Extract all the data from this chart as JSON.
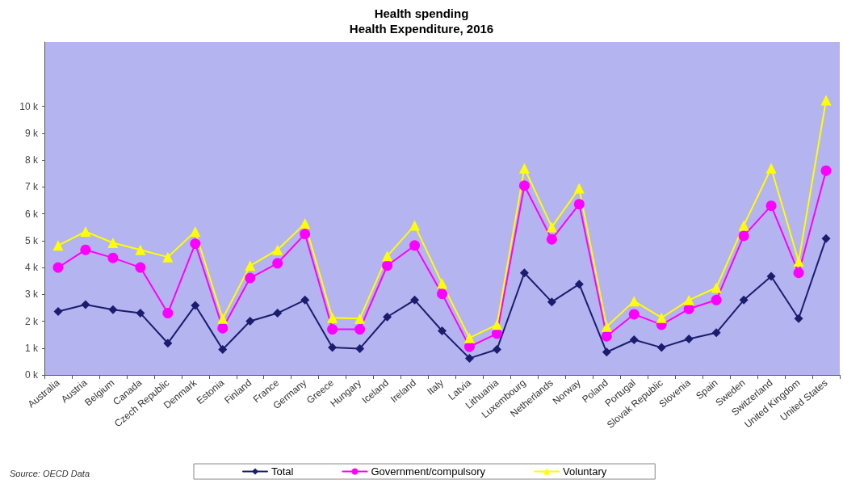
{
  "chart_data": {
    "type": "line",
    "title": "Health spending",
    "subtitle": "Health Expenditure, 2016",
    "categories": [
      "Australia",
      "Austria",
      "Belgium",
      "Canada",
      "Czech Republic",
      "Denmark",
      "Estonia",
      "Finland",
      "France",
      "Germany",
      "Greece",
      "Hungary",
      "Iceland",
      "Ireland",
      "Italy",
      "Latvia",
      "Lithuania",
      "Luxembourg",
      "Netherlands",
      "Norway",
      "Poland",
      "Portugal",
      "Slovak Republic",
      "Slovenia",
      "Spain",
      "Sweden",
      "Switzerland",
      "United Kingdom",
      "United States"
    ],
    "series": [
      {
        "name": "Total",
        "color": "#1c1c6e",
        "marker": "diamond",
        "values": [
          2.36,
          2.62,
          2.43,
          2.3,
          1.18,
          2.59,
          0.95,
          2.0,
          2.3,
          2.79,
          1.02,
          0.98,
          2.16,
          2.79,
          1.64,
          0.62,
          0.95,
          3.8,
          2.72,
          3.38,
          0.85,
          1.31,
          1.02,
          1.34,
          1.57,
          2.79,
          3.67,
          2.1,
          5.08
        ]
      },
      {
        "name": "Government/compulsory",
        "color": "#ff00ff",
        "marker": "circle",
        "values": [
          4.0,
          4.66,
          4.36,
          4.0,
          2.3,
          4.89,
          1.74,
          3.61,
          4.16,
          5.25,
          1.7,
          1.7,
          4.07,
          4.82,
          3.02,
          1.05,
          1.54,
          7.05,
          5.05,
          6.36,
          1.44,
          2.26,
          1.87,
          2.46,
          2.79,
          5.18,
          6.3,
          3.8,
          7.61
        ]
      },
      {
        "name": "Voluntary",
        "color": "#ffff00",
        "marker": "triangle",
        "values": [
          4.82,
          5.34,
          4.92,
          4.66,
          4.39,
          5.34,
          2.1,
          4.07,
          4.66,
          5.64,
          2.13,
          2.1,
          4.43,
          5.57,
          3.41,
          1.38,
          1.87,
          7.7,
          5.51,
          6.95,
          1.8,
          2.75,
          2.13,
          2.79,
          3.25,
          5.57,
          7.7,
          4.23,
          10.23
        ]
      }
    ],
    "ylim": [
      0,
      12.4
    ],
    "yticks": [
      {
        "value": 0,
        "label": "0 k"
      },
      {
        "value": 1,
        "label": "1 k"
      },
      {
        "value": 2,
        "label": "2 k"
      },
      {
        "value": 3,
        "label": "3 k"
      },
      {
        "value": 4,
        "label": "4 k"
      },
      {
        "value": 5,
        "label": "5 k"
      },
      {
        "value": 6,
        "label": "6 k"
      },
      {
        "value": 7,
        "label": "7 k"
      },
      {
        "value": 8,
        "label": "8 k"
      },
      {
        "value": 9,
        "label": "9 k"
      },
      {
        "value": 10,
        "label": "10 k"
      }
    ],
    "grid": false,
    "legend": "bottom",
    "line_style": "solid",
    "annotations": [
      "Source: OECD Data"
    ]
  }
}
